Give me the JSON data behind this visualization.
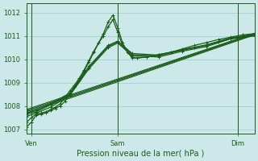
{
  "title": "Pression niveau de la mer( hPa )",
  "bg_color": "#cce8e8",
  "grid_color": "#99cccc",
  "line_color": "#1a5c1a",
  "xlim": [
    0,
    95
  ],
  "ylim": [
    1006.8,
    1012.4
  ],
  "yticks": [
    1007,
    1008,
    1009,
    1010,
    1011,
    1012
  ],
  "xtick_positions": [
    2,
    38,
    88
  ],
  "xtick_labels": [
    "Ven",
    "Sam",
    "Dim"
  ],
  "vlines": [
    2,
    38,
    88
  ],
  "series": [
    {
      "x": [
        0,
        2,
        4,
        6,
        8,
        10,
        12,
        14,
        16,
        18,
        20,
        22,
        24,
        26,
        28,
        30,
        32,
        34,
        36,
        38,
        40,
        42,
        44,
        46,
        50,
        55,
        60,
        65,
        70,
        75,
        80,
        85,
        90,
        95
      ],
      "y": [
        1007.1,
        1007.3,
        1007.6,
        1007.65,
        1007.7,
        1007.8,
        1007.9,
        1008.0,
        1008.2,
        1008.5,
        1008.8,
        1009.1,
        1009.5,
        1009.9,
        1010.3,
        1010.7,
        1011.1,
        1011.6,
        1011.9,
        1011.35,
        1010.7,
        1010.3,
        1010.1,
        1010.05,
        1010.1,
        1010.2,
        1010.3,
        1010.45,
        1010.6,
        1010.72,
        1010.85,
        1010.95,
        1011.05,
        1011.1
      ],
      "lw": 0.9
    },
    {
      "x": [
        0,
        2,
        4,
        6,
        8,
        10,
        12,
        14,
        16,
        18,
        20,
        22,
        24,
        26,
        28,
        30,
        32,
        34,
        36,
        38,
        40,
        44,
        50,
        55,
        60,
        65,
        70,
        75,
        80,
        85,
        90,
        95
      ],
      "y": [
        1007.3,
        1007.5,
        1007.65,
        1007.7,
        1007.75,
        1007.85,
        1007.95,
        1008.1,
        1008.35,
        1008.65,
        1008.9,
        1009.2,
        1009.55,
        1009.95,
        1010.35,
        1010.7,
        1011.0,
        1011.4,
        1011.7,
        1011.15,
        1010.6,
        1010.05,
        1010.1,
        1010.2,
        1010.3,
        1010.4,
        1010.5,
        1010.62,
        1010.75,
        1010.88,
        1010.98,
        1011.05
      ],
      "lw": 0.9
    },
    {
      "x": [
        0,
        4,
        10,
        18,
        26,
        34,
        38,
        44,
        55,
        65,
        75,
        85,
        95
      ],
      "y": [
        1007.55,
        1007.7,
        1007.95,
        1008.45,
        1009.6,
        1010.5,
        1010.7,
        1010.15,
        1010.1,
        1010.35,
        1010.55,
        1010.88,
        1011.0
      ],
      "lw": 0.9
    },
    {
      "x": [
        0,
        4,
        10,
        18,
        26,
        34,
        38,
        44,
        55,
        65,
        75,
        85,
        95
      ],
      "y": [
        1007.65,
        1007.75,
        1008.05,
        1008.5,
        1009.65,
        1010.55,
        1010.75,
        1010.2,
        1010.15,
        1010.4,
        1010.6,
        1010.9,
        1011.05
      ],
      "lw": 0.9
    },
    {
      "x": [
        0,
        4,
        10,
        18,
        26,
        34,
        38,
        44,
        55,
        65,
        75,
        85,
        95
      ],
      "y": [
        1007.7,
        1007.8,
        1008.1,
        1008.55,
        1009.7,
        1010.6,
        1010.78,
        1010.25,
        1010.18,
        1010.42,
        1010.62,
        1010.92,
        1011.08
      ],
      "lw": 0.9
    },
    {
      "x": [
        0,
        95
      ],
      "y": [
        1007.7,
        1011.05
      ],
      "lw": 0.8
    },
    {
      "x": [
        0,
        95
      ],
      "y": [
        1007.75,
        1011.08
      ],
      "lw": 0.8
    },
    {
      "x": [
        0,
        95
      ],
      "y": [
        1007.8,
        1011.1
      ],
      "lw": 0.8
    },
    {
      "x": [
        0,
        95
      ],
      "y": [
        1007.85,
        1011.12
      ],
      "lw": 0.8
    }
  ]
}
